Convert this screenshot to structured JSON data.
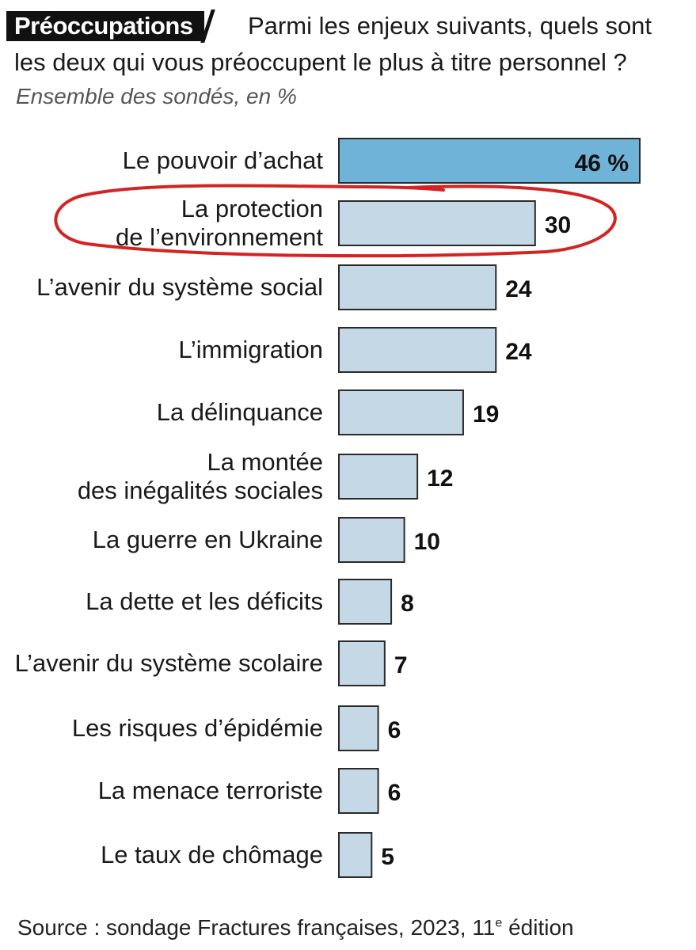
{
  "header": {
    "tag": "Préoccupations",
    "question_line1": "Parmi les enjeux suivants, quels sont",
    "question_line2": "les deux qui vous préoccupent le plus à titre personnel ?",
    "subtitle": "Ensemble des sondés, en %"
  },
  "source": {
    "text": "Source : sondage Fractures françaises, 2023, 11",
    "superscript": "e",
    "suffix": " édition"
  },
  "colors": {
    "highlight_bar": "#6fb4d8",
    "bar": "#c4d8e6",
    "bar_outline": "#2a2a2a",
    "annotation_circle": "#d42323"
  },
  "chart_data": {
    "type": "bar",
    "orientation": "horizontal",
    "categories": [
      [
        "Le pouvoir d’achat"
      ],
      [
        "La protection",
        "de l’environnement"
      ],
      [
        "L’avenir du système social"
      ],
      [
        "L’immigration"
      ],
      [
        "La délinquance"
      ],
      [
        "La montée",
        "des inégalités sociales"
      ],
      [
        "La guerre en Ukraine"
      ],
      [
        "La dette et les déficits"
      ],
      [
        "L’avenir du système scolaire"
      ],
      [
        "Les risques d’épidémie"
      ],
      [
        "La menace terroriste"
      ],
      [
        "Le taux de chômage"
      ]
    ],
    "values": [
      46,
      30,
      24,
      24,
      19,
      12,
      10,
      8,
      7,
      6,
      6,
      5
    ],
    "value_labels": [
      "46 %",
      "30",
      "24",
      "24",
      "19",
      "12",
      "10",
      "8",
      "7",
      "6",
      "6",
      "5"
    ],
    "unit": "%",
    "highlighted_index": 0,
    "annotated_index": 1,
    "grid": false,
    "legend": "none"
  }
}
